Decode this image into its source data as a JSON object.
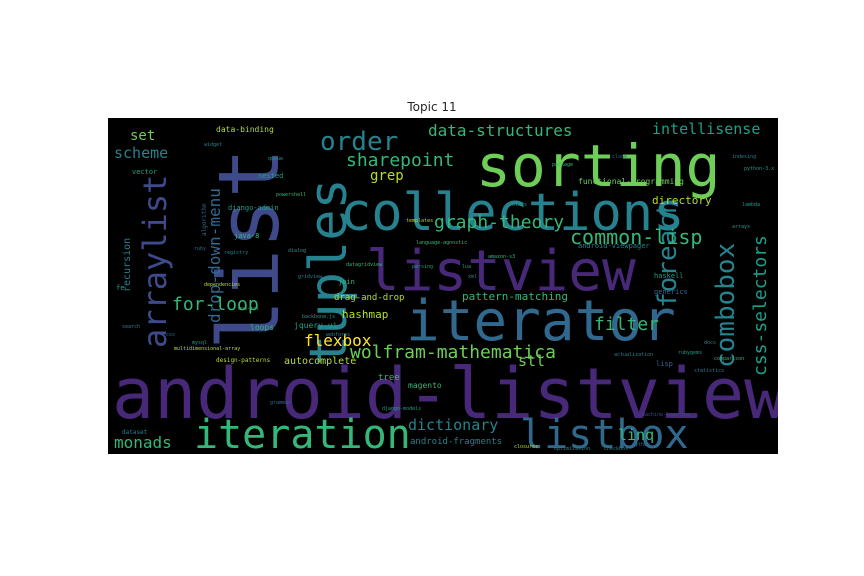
{
  "title": "Topic 11",
  "colors": {
    "background": "#000000",
    "dark_purple": "#440154",
    "purple": "#482878",
    "blue": "#3e4a89",
    "steel": "#31688e",
    "teal": "#26828e",
    "teal_green": "#1f9e89",
    "green": "#35b779",
    "light_green": "#6ece58",
    "lime": "#b5de2b",
    "yellow": "#fde725"
  },
  "words": [
    {
      "text": "list",
      "color": "#3e4a89"
    },
    {
      "text": "android-listview",
      "color": "#482878"
    },
    {
      "text": "sorting",
      "color": "#6ece58"
    },
    {
      "text": "listview",
      "color": "#482878"
    },
    {
      "text": "collections",
      "color": "#26828e"
    },
    {
      "text": "iterator",
      "color": "#31688e"
    },
    {
      "text": "tuples",
      "color": "#26828e"
    },
    {
      "text": "iteration",
      "color": "#35b779"
    },
    {
      "text": "listbox",
      "color": "#31688e"
    },
    {
      "text": "arraylist",
      "color": "#3e4a89"
    },
    {
      "text": "order",
      "color": "#26828e"
    },
    {
      "text": "combobox",
      "color": "#26828e"
    },
    {
      "text": "foreach",
      "color": "#26828e"
    },
    {
      "text": "wolfram-mathematica",
      "color": "#6ece58"
    },
    {
      "text": "common-lisp",
      "color": "#35b779"
    },
    {
      "text": "graph-theory",
      "color": "#35b779"
    },
    {
      "text": "css-selectors",
      "color": "#1f9e89"
    },
    {
      "text": "drop-down-menu",
      "color": "#31688e"
    },
    {
      "text": "for-loop",
      "color": "#35b779"
    },
    {
      "text": "filter",
      "color": "#35b779"
    },
    {
      "text": "data-structures",
      "color": "#35b779"
    },
    {
      "text": "intellisense",
      "color": "#1f9e89"
    },
    {
      "text": "sharepoint",
      "color": "#35b779"
    },
    {
      "text": "flexbox",
      "color": "#fde725"
    },
    {
      "text": "monads",
      "color": "#35b779"
    },
    {
      "text": "dictionary",
      "color": "#26828e"
    },
    {
      "text": "linq",
      "color": "#35b779"
    },
    {
      "text": "stl",
      "color": "#6ece58"
    },
    {
      "text": "scheme",
      "color": "#26828e"
    },
    {
      "text": "set",
      "color": "#6ece58"
    },
    {
      "text": "grep",
      "color": "#b5de2b"
    },
    {
      "text": "hashmap",
      "color": "#b5de2b"
    },
    {
      "text": "pattern-matching",
      "color": "#35b779"
    },
    {
      "text": "autocomplete",
      "color": "#b5de2b"
    },
    {
      "text": "recursion",
      "color": "#26828e"
    },
    {
      "text": "directory",
      "color": "#b5de2b"
    },
    {
      "text": "drag-and-drop",
      "color": "#b5de2b"
    },
    {
      "text": "tree",
      "color": "#35b779"
    },
    {
      "text": "loops",
      "color": "#35b779"
    },
    {
      "text": "jquery-ui",
      "color": "#1f9e89"
    },
    {
      "text": "android-fragments",
      "color": "#26828e"
    },
    {
      "text": "magento",
      "color": "#35b779"
    },
    {
      "text": "generics",
      "color": "#31688e"
    },
    {
      "text": "lisp",
      "color": "#31688e"
    },
    {
      "text": "data-binding",
      "color": "#b5de2b"
    },
    {
      "text": "functional-programming",
      "color": "#6ece58"
    },
    {
      "text": "haskell",
      "color": "#1f9e89"
    },
    {
      "text": "django-admin",
      "color": "#1f9e89"
    },
    {
      "text": "nested",
      "color": "#1f9e89"
    },
    {
      "text": "java-8",
      "color": "#35b779"
    },
    {
      "text": "join",
      "color": "#35b779"
    },
    {
      "text": "vector",
      "color": "#1f9e89"
    },
    {
      "text": "fe",
      "color": "#1f9e89"
    },
    {
      "text": "dataset",
      "color": "#26828e"
    },
    {
      "text": "design-patterns",
      "color": "#b5de2b"
    },
    {
      "text": "android-viewpager",
      "color": "#26828e"
    },
    {
      "text": "language-agnostic",
      "color": "#35b779"
    },
    {
      "text": "powershell",
      "color": "#35b779"
    },
    {
      "text": "templates",
      "color": "#b5de2b"
    },
    {
      "text": "multidimensional-array",
      "color": "#b5de2b"
    },
    {
      "text": "django-models",
      "color": "#1f9e89"
    },
    {
      "text": "backbone.js",
      "color": "#1f9e89"
    },
    {
      "text": "registry",
      "color": "#26828e"
    },
    {
      "text": "algorithm",
      "color": "#31688e"
    },
    {
      "text": "dependencies",
      "color": "#b5de2b"
    },
    {
      "text": "arrays",
      "color": "#1f9e89"
    },
    {
      "text": "python-3.x",
      "color": "#1f9e89"
    },
    {
      "text": "python",
      "color": "#31688e"
    },
    {
      "text": "package",
      "color": "#35b779"
    },
    {
      "text": "class",
      "color": "#1f9e89"
    },
    {
      "text": "lambda",
      "color": "#1f9e89"
    },
    {
      "text": "indexing",
      "color": "#26828e"
    },
    {
      "text": "clone",
      "color": "#31688e"
    },
    {
      "text": "docs",
      "color": "#26828e"
    },
    {
      "text": "comparison",
      "color": "#35b779"
    },
    {
      "text": "machine-learning",
      "color": "#3e4a89"
    },
    {
      "text": "statistics",
      "color": "#26828e"
    },
    {
      "text": "optimization",
      "color": "#26828e"
    },
    {
      "text": "closures",
      "color": "#b5de2b"
    },
    {
      "text": "checkbox",
      "color": "#26828e"
    },
    {
      "text": "datagridview",
      "color": "#35b779"
    },
    {
      "text": "amazon-s3",
      "color": "#35b779"
    },
    {
      "text": "grammar",
      "color": "#31688e"
    },
    {
      "text": "dialog",
      "color": "#1f9e89"
    },
    {
      "text": "lua",
      "color": "#1f9e89"
    },
    {
      "text": "queue",
      "color": "#1f9e89"
    },
    {
      "text": "widget",
      "color": "#26828e"
    },
    {
      "text": "parsing",
      "color": "#1f9e89"
    },
    {
      "text": "actualization",
      "color": "#26828e"
    },
    {
      "text": "rubygems",
      "color": "#1f9e89"
    },
    {
      "text": "mod-ssl",
      "color": "#35b779"
    },
    {
      "text": "webforms",
      "color": "#26828e"
    },
    {
      "text": "css",
      "color": "#31688e"
    },
    {
      "text": "search",
      "color": "#26828e"
    },
    {
      "text": "xml",
      "color": "#26828e"
    },
    {
      "text": "gridview",
      "color": "#26828e"
    },
    {
      "text": "mysql",
      "color": "#1f9e89"
    },
    {
      "text": "ruby",
      "color": "#31688e"
    }
  ]
}
